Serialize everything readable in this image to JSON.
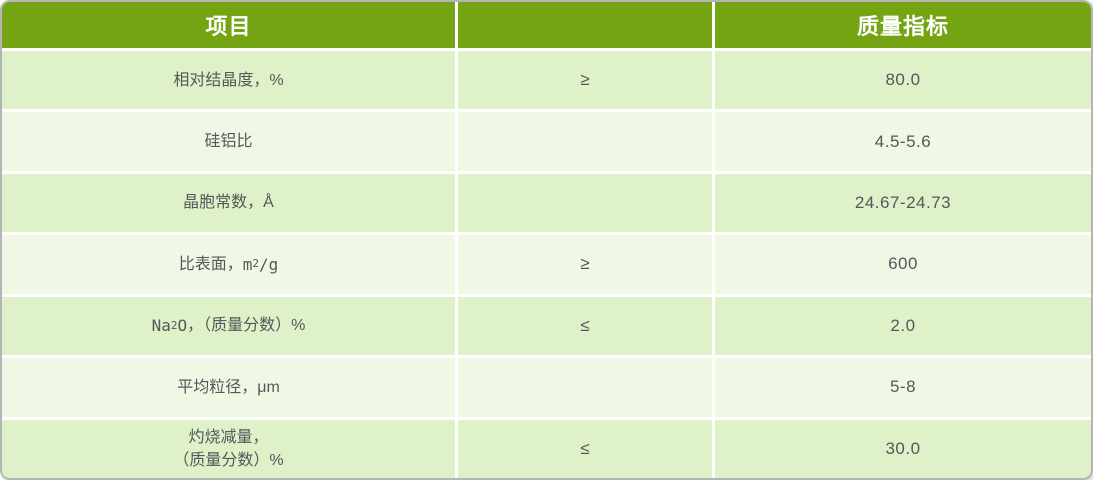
{
  "colors": {
    "header_green": "#74a412",
    "row_dark_green": "#dff1c8",
    "row_light_green": "#eff8e5",
    "header_text": "#ffffff",
    "body_text": "#55575a",
    "outer_border": "#b5b5b5"
  },
  "table": {
    "headers": {
      "item": "项目",
      "operator": "",
      "indicator": "质量指标"
    },
    "rows": [
      {
        "item": "相对结晶度，%",
        "operator": "≥",
        "value": "80.0"
      },
      {
        "item": "硅铝比",
        "operator": "",
        "value": "4.5-5.6"
      },
      {
        "item": "晶胞常数，Å",
        "operator": "",
        "value": "24.67-24.73"
      },
      {
        "item_text": "比表面，",
        "unit_base": " m",
        "unit_sup": "2",
        "unit_rest": "/g",
        "operator": "≥",
        "value": "600"
      },
      {
        "formula_base": "Na",
        "formula_sub": "2",
        "formula_rest": "O",
        "item_text": "，（质量分数）%",
        "operator": "≤",
        "value": "2.0"
      },
      {
        "item": "平均粒径，μm",
        "operator": "",
        "value": "5-8"
      },
      {
        "item_line1": "灼烧减量，",
        "item_line2": "（质量分数）%",
        "operator": "≤",
        "value": "30.0"
      }
    ]
  }
}
